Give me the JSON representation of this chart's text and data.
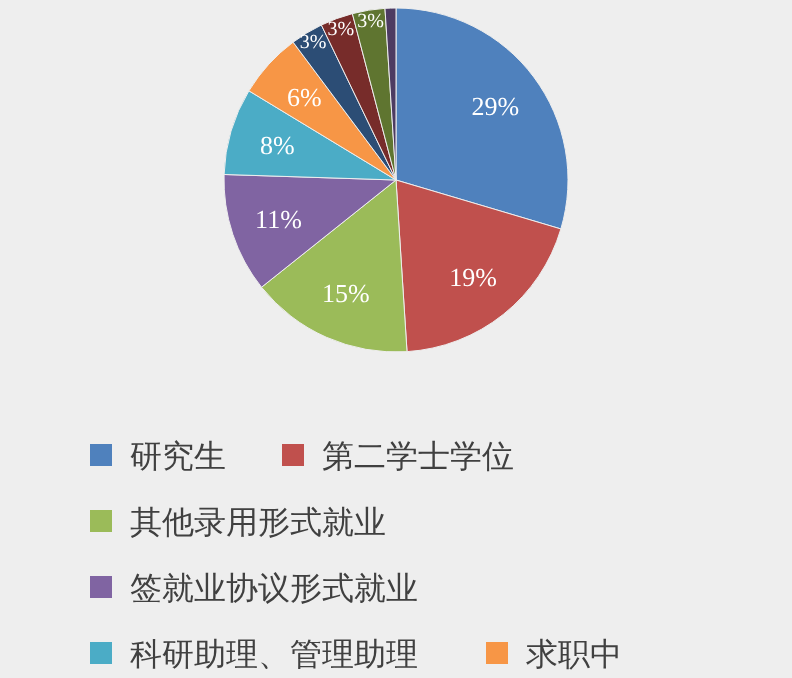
{
  "chart_data": {
    "type": "pie",
    "categories": [
      "研究生",
      "第二学士学位",
      "其他录用形式就业",
      "签就业协议形式就业",
      "科研助理、管理助理",
      "求职中",
      null,
      null,
      null,
      null
    ],
    "values": [
      29,
      19,
      15,
      11,
      8,
      6,
      3,
      3,
      3,
      1
    ],
    "value_labels": [
      "29%",
      "19%",
      "15%",
      "11%",
      "8%",
      "6%",
      "3%",
      "3%",
      "3%",
      null
    ],
    "colors": [
      "#4f81bd",
      "#c0504d",
      "#9bbb59",
      "#8064a2",
      "#4bacc6",
      "#f79646",
      "#2c4d75",
      "#772c2a",
      "#5f7530",
      "#4d3b62"
    ],
    "legend": "bottom"
  }
}
